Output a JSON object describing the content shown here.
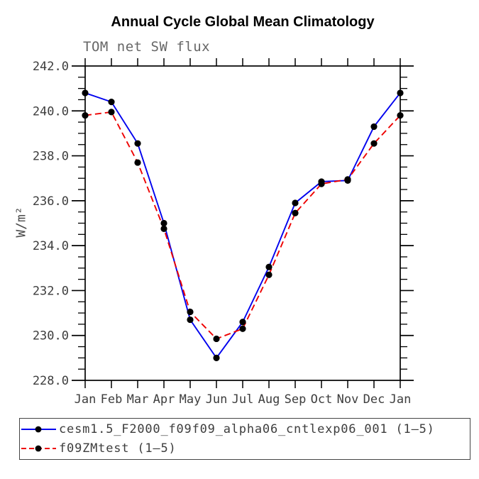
{
  "chart_data": {
    "type": "line",
    "title": "Annual Cycle Global Mean Climatology",
    "subtitle": "TOM net SW flux",
    "xlabel": "",
    "ylabel": "W/m²",
    "categories": [
      "Jan",
      "Feb",
      "Mar",
      "Apr",
      "May",
      "Jun",
      "Jul",
      "Aug",
      "Sep",
      "Oct",
      "Nov",
      "Dec",
      "Jan"
    ],
    "ylim": [
      228.0,
      242.0
    ],
    "ytick_major_interval": 2.0,
    "ytick_minor_interval": 0.5,
    "ytick_labels": [
      "228.0",
      "230.0",
      "232.0",
      "234.0",
      "236.0",
      "238.0",
      "240.0",
      "242.0"
    ],
    "grid": false,
    "legend_position": "bottom-box",
    "series": [
      {
        "name": "cesm1.5_F2000_f09f09_alpha06_cntlexp06_001 (1–5)",
        "color": "#0000ee",
        "line_style": "solid",
        "marker": "filled-circle",
        "marker_color": "#000000",
        "values": [
          240.8,
          240.4,
          238.55,
          235.0,
          230.7,
          229.0,
          230.6,
          233.05,
          235.9,
          236.85,
          236.9,
          239.3,
          240.8
        ]
      },
      {
        "name": "f09ZMtest (1–5)",
        "color": "#ee0000",
        "line_style": "dashed",
        "marker": "filled-circle",
        "marker_color": "#000000",
        "values": [
          239.8,
          239.95,
          237.7,
          234.75,
          231.05,
          229.85,
          230.3,
          232.7,
          235.45,
          236.75,
          236.95,
          238.55,
          239.8
        ]
      }
    ]
  },
  "colors": {
    "background": "#ffffff",
    "frame": "#000000",
    "tick_label": "#3d3d3d",
    "title": "#000000",
    "subtitle": "#666666",
    "axis_label": "#4a4a4a"
  }
}
